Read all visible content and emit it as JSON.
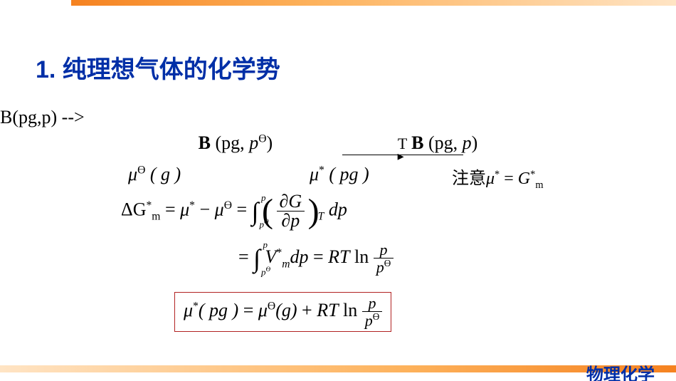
{
  "colors": {
    "accent": "#002fa7",
    "gradient_start": "#f58220",
    "gradient_mid": "#fdb25c",
    "gradient_end": "#ffe4c4",
    "box_border": "#b22222",
    "text": "#000000",
    "background": "#ffffff"
  },
  "title": "1.  纯理想气体的化学势",
  "footer": "物理化学",
  "reaction": {
    "left_B": "B",
    "left_paren": " (pg, ",
    "left_p": "p",
    "left_theta": "Ө",
    "left_close": ")",
    "arrow_label": "T",
    "right_B": "B",
    "right_paren": " (pg, ",
    "right_p": "p",
    "right_close": ")"
  },
  "row2": {
    "mu_a_pre": "μ",
    "mu_a_sup": "Ө",
    "mu_a_arg": "( g )",
    "mu_b_pre": "μ",
    "mu_b_sup": "*",
    "mu_b_arg": "( pg )",
    "note_label": "注意",
    "note_mu": "μ",
    "note_mu_sup": "*",
    "note_eq": " = ",
    "note_G": "G",
    "note_G_sup": "*",
    "note_G_sub": "m"
  },
  "eq3": {
    "dG": "ΔG",
    "dG_sup": "*",
    "dG_sub": "m",
    "eq": " = ",
    "mu1": "μ",
    "mu1_sup": "*",
    "minus": " − ",
    "mu2": " μ",
    "mu2_sup": "Ө",
    "eq2": " = ",
    "int_upper": "p",
    "int_lower": "p",
    "int_lower_sup": "Ө",
    "partial_top_d": "∂",
    "partial_top_v": "G",
    "partial_bot_d": "∂",
    "partial_bot_v": "p",
    "paren_sub": "T",
    "dp": " dp"
  },
  "eq4": {
    "eq": "= ",
    "int_upper": "p",
    "int_lower": "p",
    "int_lower_sup": "Ө",
    "V": "V",
    "V_sup": "*",
    "V_sub": "m",
    "dp": "dp",
    "eq2": " = ",
    "RT": "RT",
    "ln": " ln ",
    "frac_top": "p",
    "frac_bot": "p",
    "frac_bot_sup": "Ө"
  },
  "boxed": {
    "mu1": "μ",
    "mu1_sup": "*",
    "arg1": "( pg )",
    "eq": " = ",
    "mu2": "μ",
    "mu2_sup": "Ө",
    "arg2": "(g)",
    "plus": " + ",
    "RT": "RT",
    "ln": " ln ",
    "frac_top": "p",
    "frac_bot": "p",
    "frac_bot_sup": "Ө"
  }
}
